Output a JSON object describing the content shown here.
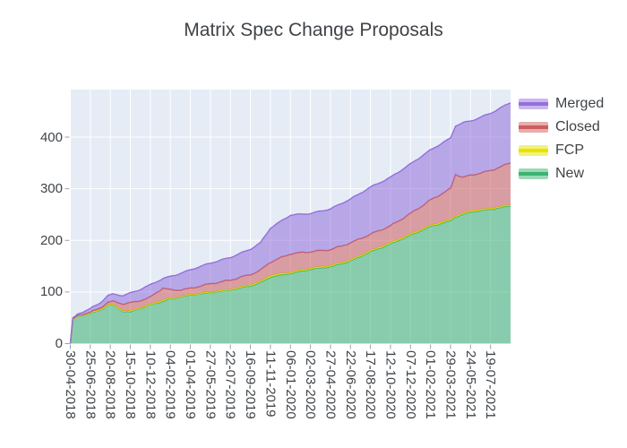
{
  "chart_data": {
    "type": "area",
    "stacked": true,
    "title": "Matrix Spec Change Proposals",
    "grid": true,
    "legend_position": "top-right",
    "x_range": [
      "2018-04-30",
      "2021-09-13"
    ],
    "ylim": [
      0,
      492
    ],
    "y_ticks": [
      0,
      100,
      200,
      300,
      400
    ],
    "x_ticks": {
      "dates": [
        "2018-04-30",
        "2018-06-25",
        "2018-08-20",
        "2018-10-15",
        "2018-12-10",
        "2019-02-04",
        "2019-04-01",
        "2019-05-27",
        "2019-07-22",
        "2019-09-16",
        "2019-11-11",
        "2020-01-06",
        "2020-03-02",
        "2020-04-27",
        "2020-06-22",
        "2020-08-17",
        "2020-10-12",
        "2020-12-07",
        "2021-02-01",
        "2021-03-29",
        "2021-05-24",
        "2021-07-19"
      ],
      "labels": [
        "30-04-2018",
        "25-06-2018",
        "20-08-2018",
        "15-10-2018",
        "10-12-2018",
        "04-02-2019",
        "01-04-2019",
        "27-05-2019",
        "22-07-2019",
        "16-09-2019",
        "11-11-2019",
        "06-01-2020",
        "02-03-2020",
        "27-04-2020",
        "22-06-2020",
        "17-08-2020",
        "12-10-2020",
        "07-12-2020",
        "01-02-2021",
        "29-03-2021",
        "24-05-2021",
        "19-07-2021"
      ]
    },
    "x": [
      "2018-04-30",
      "2018-05-07",
      "2018-05-21",
      "2018-06-25",
      "2018-07-23",
      "2018-08-13",
      "2018-08-27",
      "2018-09-24",
      "2018-10-15",
      "2018-11-05",
      "2018-12-10",
      "2019-01-14",
      "2019-02-04",
      "2019-03-04",
      "2019-04-01",
      "2019-05-27",
      "2019-07-22",
      "2019-09-16",
      "2019-10-14",
      "2019-11-11",
      "2020-01-06",
      "2020-03-02",
      "2020-04-27",
      "2020-06-22",
      "2020-08-17",
      "2020-10-12",
      "2020-12-07",
      "2021-02-01",
      "2021-03-29",
      "2021-04-12",
      "2021-05-03",
      "2021-05-24",
      "2021-07-19",
      "2021-09-13"
    ],
    "series": [
      {
        "name": "New",
        "color": "#3cb371",
        "values": [
          0,
          46,
          53,
          58,
          65,
          74,
          75,
          63,
          61,
          67,
          75,
          82,
          87,
          90,
          94,
          99,
          104,
          112,
          118,
          129,
          136,
          144,
          149,
          160,
          178,
          193,
          210,
          227,
          238,
          246,
          250,
          255,
          260,
          267
        ]
      },
      {
        "name": "FCP",
        "color": "#e8e400",
        "values": [
          0,
          0,
          0,
          1,
          1,
          1,
          1,
          1,
          2,
          1,
          1,
          2,
          1,
          1,
          1,
          1,
          1,
          2,
          2,
          3,
          2,
          2,
          2,
          2,
          2,
          2,
          2,
          2,
          2,
          2,
          2,
          2,
          2,
          2
        ]
      },
      {
        "name": "Closed",
        "color": "#cd5c5c",
        "values": [
          0,
          1,
          1,
          2,
          3,
          5,
          6,
          13,
          16,
          14,
          14,
          24,
          16,
          13,
          12,
          16,
          18,
          20,
          22,
          26,
          36,
          32,
          31,
          33,
          32,
          33,
          40,
          49,
          60,
          80,
          70,
          69,
          73,
          81
        ]
      },
      {
        "name": "Merged",
        "color": "#9370db",
        "values": [
          0,
          2,
          3,
          7,
          10,
          13,
          14,
          16,
          19,
          21,
          24,
          18,
          26,
          32,
          36,
          40,
          44,
          49,
          53,
          66,
          75,
          74,
          79,
          85,
          91,
          94,
          96,
          97,
          98,
          94,
          106,
          105,
          111,
          117
        ]
      }
    ],
    "legend_order_top_to_bottom": [
      "Merged",
      "Closed",
      "FCP",
      "New"
    ],
    "colors": {
      "plot_bg": "#e5ecf6",
      "grid": "#ffffff",
      "text": "#3f4347",
      "tick_mark": "#9aa0a6"
    },
    "fill_opacity": 0.55
  }
}
